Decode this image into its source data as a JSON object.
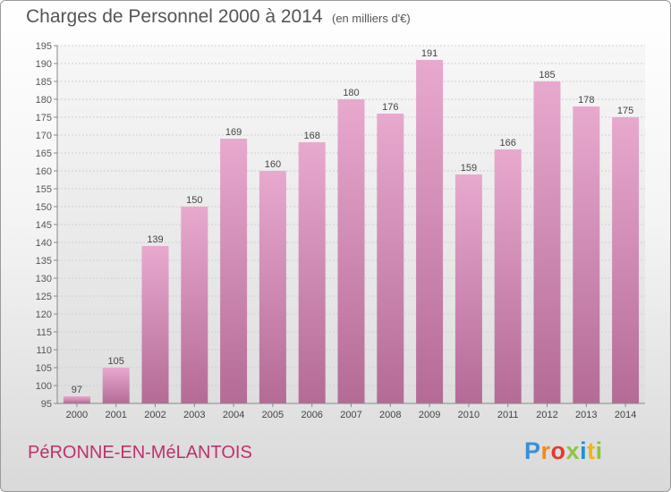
{
  "header": {
    "title": "Charges de Personnel 2000 à 2014",
    "subtitle": "(en milliers d'€)"
  },
  "footer": {
    "commune": "PéRONNE-EN-MéLANTOIS",
    "logo": "Proxiti",
    "logo_colors": [
      "#3a8fd6",
      "#f08a1c",
      "#e53a2f",
      "#8cc63f",
      "#1e8fd6",
      "#f0b41c",
      "#8cc63f"
    ]
  },
  "chart_data": {
    "type": "bar",
    "categories": [
      "2000",
      "2001",
      "2002",
      "2003",
      "2004",
      "2005",
      "2006",
      "2007",
      "2008",
      "2009",
      "2010",
      "2011",
      "2012",
      "2013",
      "2014"
    ],
    "values": [
      97,
      105,
      139,
      150,
      169,
      160,
      168,
      180,
      176,
      191,
      159,
      166,
      185,
      178,
      175
    ],
    "title": "Charges de Personnel 2000 à 2014",
    "xlabel": "",
    "ylabel": "",
    "ylim": [
      95,
      195
    ],
    "yticks": [
      95,
      100,
      105,
      110,
      115,
      120,
      125,
      130,
      135,
      140,
      145,
      150,
      155,
      160,
      165,
      170,
      175,
      180,
      185,
      190,
      195
    ],
    "grid": true,
    "bar_color_top": "#e8a9cf",
    "bar_color_bottom": "#b46b96"
  }
}
